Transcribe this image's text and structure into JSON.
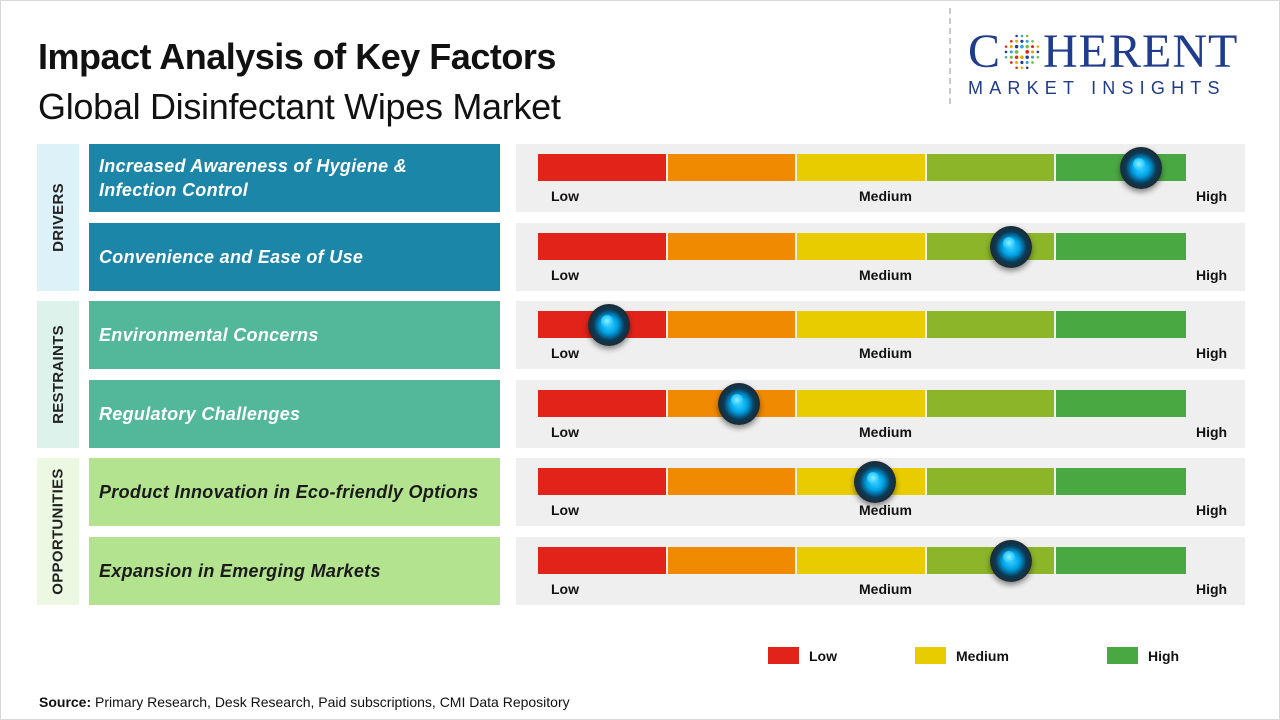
{
  "title": "Impact Analysis of Key Factors",
  "subtitle": "Global Disinfectant Wipes Market",
  "logo": {
    "top": "COHERENT",
    "bottom": "MARKET INSIGHTS"
  },
  "colors": {
    "low": "#e2231a",
    "low_mid": "#f08a00",
    "medium": "#e8cc00",
    "mid_high": "#8db52a",
    "high": "#4aa843",
    "drivers_bg": "#1c86a8",
    "restraints_bg": "#52b899",
    "opportunities_bg": "#b3e38f",
    "drivers_cat_bg": "#dcf1f8",
    "restraints_cat_bg": "#dcf2ea",
    "opportunities_cat_bg": "#ecf8e2"
  },
  "scale_labels": {
    "low": "Low",
    "medium": "Medium",
    "high": "High"
  },
  "chart_data": {
    "type": "gauge",
    "scale": {
      "min": 0,
      "max": 1,
      "ticks": [
        "Low",
        "Medium",
        "High"
      ]
    },
    "categories": [
      {
        "name": "DRIVERS",
        "factors": [
          {
            "label": "Increased Awareness of Hygiene & Infection Control",
            "impact": 0.93
          },
          {
            "label": "Convenience and Ease of Use",
            "impact": 0.73
          }
        ]
      },
      {
        "name": "RESTRAINTS",
        "factors": [
          {
            "label": "Environmental Concerns",
            "impact": 0.11
          },
          {
            "label": "Regulatory Challenges",
            "impact": 0.31
          }
        ]
      },
      {
        "name": "OPPORTUNITIES",
        "factors": [
          {
            "label": "Product Innovation in Eco-friendly Options",
            "impact": 0.52
          },
          {
            "label": "Expansion in Emerging Markets",
            "impact": 0.73
          }
        ]
      }
    ],
    "legend": [
      "Low",
      "Medium",
      "High"
    ]
  },
  "source": {
    "prefix": "Source:",
    "text": " Primary Research, Desk Research, Paid subscriptions, CMI Data Repository"
  }
}
